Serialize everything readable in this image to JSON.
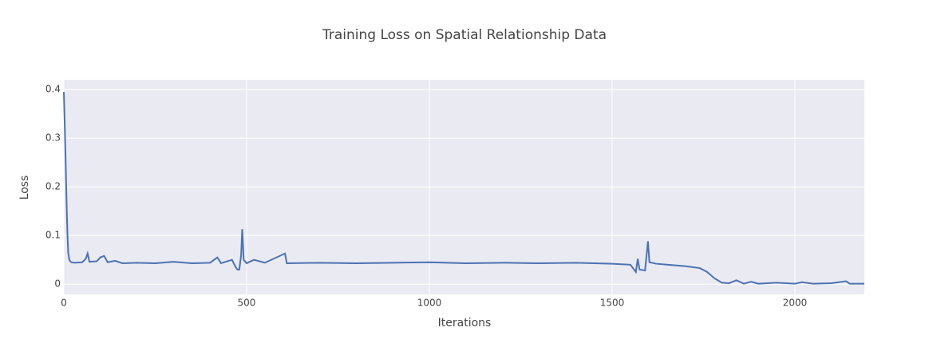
{
  "chart_data": {
    "type": "line",
    "title": "Training Loss on Spatial Relationship Data",
    "x_label": "Iterations",
    "y_label": "Loss",
    "x": [
      0,
      2,
      5,
      8,
      10,
      12,
      15,
      20,
      30,
      50,
      60,
      65,
      70,
      90,
      100,
      110,
      120,
      140,
      160,
      200,
      250,
      300,
      350,
      400,
      420,
      430,
      460,
      470,
      475,
      480,
      485,
      488,
      492,
      500,
      520,
      550,
      605,
      610,
      700,
      800,
      900,
      1000,
      1100,
      1200,
      1300,
      1400,
      1500,
      1550,
      1565,
      1570,
      1575,
      1590,
      1598,
      1602,
      1620,
      1650,
      1700,
      1740,
      1760,
      1780,
      1800,
      1820,
      1840,
      1860,
      1880,
      1900,
      1950,
      2000,
      2020,
      2050,
      2100,
      2140,
      2150,
      2190
    ],
    "series": [
      {
        "name": "Loss",
        "color": "#4c72b0",
        "values": [
          0.395,
          0.34,
          0.25,
          0.15,
          0.1,
          0.065,
          0.05,
          0.045,
          0.044,
          0.045,
          0.052,
          0.063,
          0.046,
          0.047,
          0.055,
          0.058,
          0.045,
          0.048,
          0.043,
          0.044,
          0.043,
          0.046,
          0.043,
          0.044,
          0.055,
          0.043,
          0.05,
          0.035,
          0.03,
          0.03,
          0.06,
          0.113,
          0.05,
          0.043,
          0.05,
          0.044,
          0.063,
          0.043,
          0.044,
          0.043,
          0.044,
          0.045,
          0.043,
          0.044,
          0.043,
          0.044,
          0.042,
          0.04,
          0.025,
          0.052,
          0.03,
          0.028,
          0.088,
          0.045,
          0.042,
          0.04,
          0.037,
          0.033,
          0.025,
          0.012,
          0.003,
          0.002,
          0.008,
          0.001,
          0.005,
          0.001,
          0.003,
          0.001,
          0.004,
          0.001,
          0.002,
          0.006,
          0.001,
          0.001
        ]
      }
    ],
    "xlim": [
      0,
      2190
    ],
    "ylim": [
      -0.021,
      0.42
    ],
    "xticks": [
      0,
      500,
      1000,
      1500,
      2000
    ],
    "yticks": [
      0,
      0.1,
      0.2,
      0.3,
      0.4
    ],
    "grid": true
  }
}
